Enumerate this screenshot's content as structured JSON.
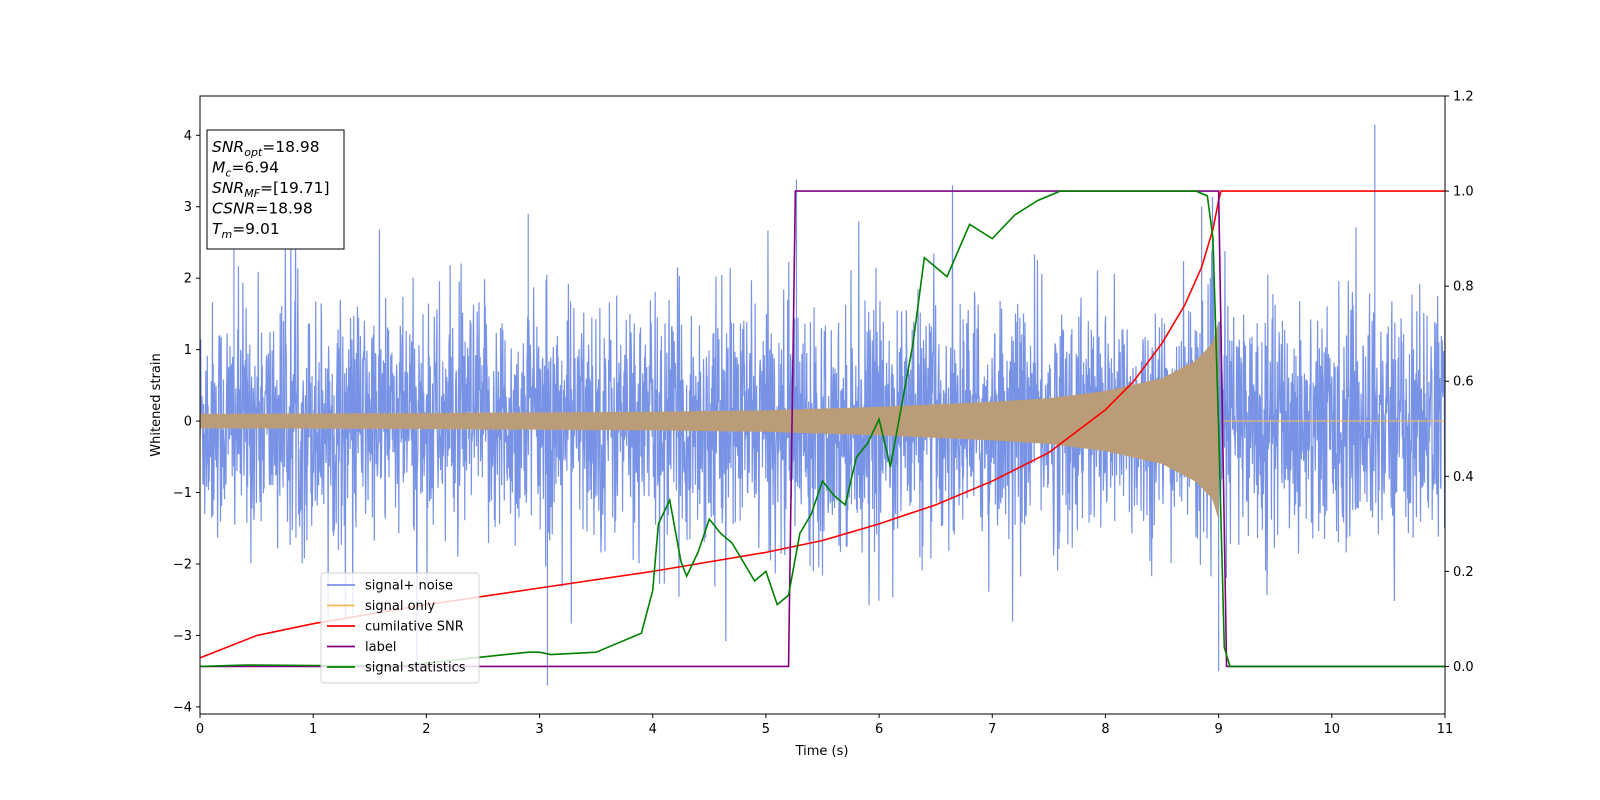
{
  "chart_data": {
    "type": "line",
    "xlabel": "Time (s)",
    "ylabel": "Whitened strain",
    "xlim": [
      0,
      11
    ],
    "ylim_left": [
      -4.1,
      4.55
    ],
    "ylim_right": [
      -0.1,
      1.2
    ],
    "x_ticks": [
      "0",
      "1",
      "2",
      "3",
      "4",
      "5",
      "6",
      "7",
      "8",
      "9",
      "10",
      "11"
    ],
    "y_ticks_left": [
      "−4",
      "−3",
      "−2",
      "−1",
      "0",
      "1",
      "2",
      "3",
      "4"
    ],
    "y_ticks_right": [
      "0.0",
      "0.2",
      "0.4",
      "0.6",
      "0.8",
      "1.0",
      "1.2"
    ],
    "grid": false,
    "legend_position": "lower-left",
    "colors": {
      "noise": "#7893e6",
      "signal": "#f0b860",
      "overlap": "#bb9c78",
      "snr": "#ff0000",
      "label": "#800080",
      "stats": "#008000"
    },
    "series": [
      {
        "name": "signal+ noise",
        "axis": "left",
        "description_values": {
          "typical_amplitude": 1.6,
          "peak_max": 4.15,
          "peak_min": -3.7
        }
      },
      {
        "name": "signal only",
        "axis": "left",
        "envelope": {
          "x": [
            0,
            2,
            4,
            5,
            6,
            7,
            7.5,
            8,
            8.5,
            8.8,
            8.95,
            9.0,
            9.03
          ],
          "amp": [
            0.1,
            0.11,
            0.13,
            0.15,
            0.2,
            0.27,
            0.32,
            0.42,
            0.6,
            0.85,
            1.1,
            1.4,
            0
          ]
        }
      },
      {
        "name": "cumilative SNR",
        "axis": "right",
        "x": [
          0,
          0.5,
          1,
          2,
          3,
          4,
          5,
          5.5,
          6,
          6.5,
          7,
          7.5,
          8,
          8.25,
          8.5,
          8.7,
          8.85,
          8.95,
          9.0,
          9.02,
          11
        ],
        "y": [
          0.018,
          0.065,
          0.09,
          0.13,
          0.165,
          0.2,
          0.24,
          0.265,
          0.3,
          0.34,
          0.39,
          0.45,
          0.54,
          0.6,
          0.68,
          0.76,
          0.84,
          0.92,
          0.98,
          1.0,
          1.0
        ]
      },
      {
        "name": "label",
        "axis": "right",
        "x": [
          0,
          5.2,
          5.26,
          9.0,
          9.07,
          11
        ],
        "y": [
          0,
          0,
          1,
          1,
          0,
          0
        ]
      },
      {
        "name": "signal statistics",
        "axis": "right",
        "x": [
          0,
          0.4,
          1,
          1.8,
          2.5,
          2.9,
          3.0,
          3.1,
          3.5,
          3.7,
          3.9,
          4.0,
          4.05,
          4.15,
          4.25,
          4.3,
          4.4,
          4.5,
          4.6,
          4.7,
          4.8,
          4.9,
          5.0,
          5.1,
          5.2,
          5.3,
          5.4,
          5.5,
          5.6,
          5.7,
          5.8,
          5.9,
          6.0,
          6.1,
          6.2,
          6.3,
          6.4,
          6.6,
          6.8,
          7.0,
          7.2,
          7.4,
          7.6,
          8.0,
          8.4,
          8.8,
          8.9,
          8.95,
          9.0,
          9.05,
          9.1,
          11
        ],
        "y": [
          0.0,
          0.003,
          0.002,
          0.002,
          0.02,
          0.03,
          0.03,
          0.025,
          0.03,
          0.05,
          0.07,
          0.16,
          0.3,
          0.35,
          0.22,
          0.19,
          0.24,
          0.31,
          0.28,
          0.26,
          0.22,
          0.18,
          0.2,
          0.13,
          0.15,
          0.28,
          0.32,
          0.39,
          0.36,
          0.34,
          0.44,
          0.47,
          0.52,
          0.42,
          0.55,
          0.68,
          0.86,
          0.82,
          0.93,
          0.9,
          0.95,
          0.98,
          1.0,
          1.0,
          1.0,
          1.0,
          0.99,
          0.9,
          0.5,
          0.04,
          0.0,
          0.0
        ]
      }
    ]
  },
  "info_box": {
    "lines": [
      {
        "main": "SNR",
        "sub": "opt",
        "value": "=18.98"
      },
      {
        "main": "M",
        "sub": "c",
        "value": "=6.94"
      },
      {
        "main": "SNR",
        "sub": "MF",
        "value": "=[19.71]"
      },
      {
        "main": "CSNR",
        "sub": "",
        "value": "=18.98"
      },
      {
        "main": "T",
        "sub": "m",
        "value": "=9.01"
      }
    ]
  }
}
